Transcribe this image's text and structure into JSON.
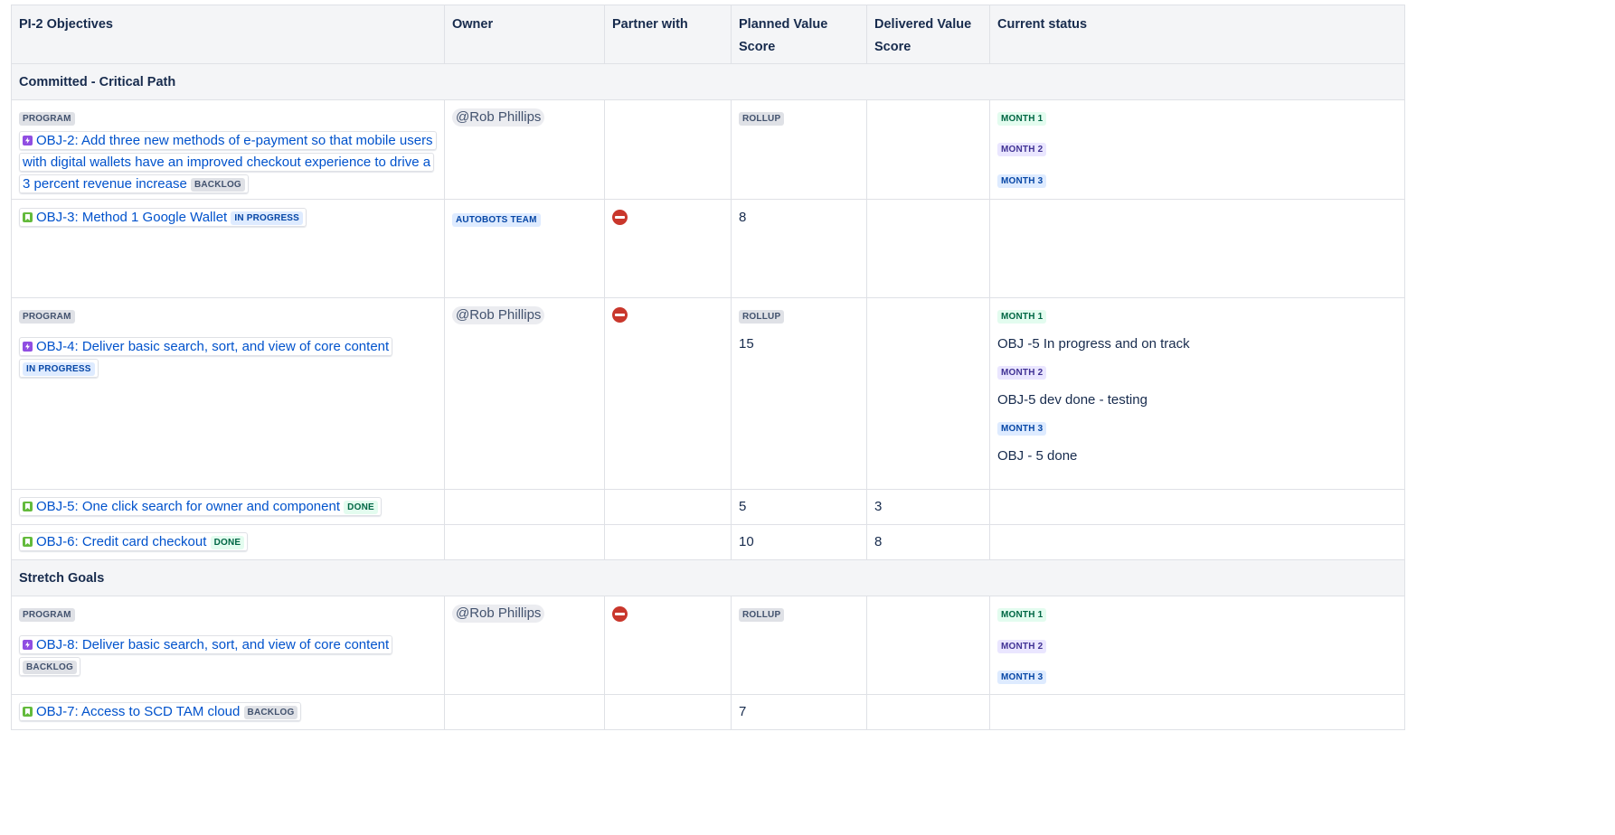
{
  "headers": [
    "PI-2 Objectives",
    "Owner",
    "Partner with",
    "Planned Value Score",
    "Delivered Value Score",
    "Current status"
  ],
  "sections": {
    "committed": "Committed - Critical Path",
    "stretch": "Stretch Goals"
  },
  "labels": {
    "program": "PROGRAM",
    "rollup": "ROLLUP",
    "month1": "MONTH 1",
    "month2": "MONTH 2",
    "month3": "MONTH 3",
    "backlog": "BACKLOG",
    "in_progress": "IN PROGRESS",
    "done": "DONE"
  },
  "rows": {
    "obj2": {
      "title": "OBJ-2: Add three new methods of e-payment so that mobile users with digital wallets have an improved checkout experience to drive a 3 percent revenue increase",
      "status": "BACKLOG",
      "owner": "@Rob Phillips"
    },
    "obj3": {
      "title": "OBJ-3: Method 1 Google Wallet",
      "status": "IN PROGRESS",
      "owner": "AUTOBOTS TEAM",
      "planned": "8"
    },
    "obj4": {
      "title": "OBJ-4: Deliver basic search, sort, and view of core content",
      "status": "IN PROGRESS",
      "owner": "@Rob Phillips",
      "planned": "15",
      "month1_note": "OBJ -5 In progress and on track",
      "month2_note": "OBJ-5 dev done - testing",
      "month3_note": "OBJ - 5 done"
    },
    "obj5": {
      "title": "OBJ-5: One click search for owner and component",
      "status": "DONE",
      "planned": "5",
      "delivered": "3"
    },
    "obj6": {
      "title": "OBJ-6: Credit card checkout",
      "status": "DONE",
      "planned": "10",
      "delivered": "8"
    },
    "obj8": {
      "title": "OBJ-8: Deliver basic search, sort, and view of core content",
      "status": "BACKLOG",
      "owner": "@Rob Phillips"
    },
    "obj7": {
      "title": "OBJ-7: Access to SCD TAM cloud",
      "status": "BACKLOG",
      "planned": "7"
    }
  },
  "colors": {
    "link": "#0052cc",
    "header_bg": "#f4f5f7",
    "border": "#dfe1e6",
    "blocker": "#c9372c",
    "epic_icon": "#904ee2",
    "story_icon": "#63ba3c"
  },
  "icons": {
    "epic": "epic-icon",
    "story": "story-icon",
    "blocker": "blocker-icon"
  }
}
